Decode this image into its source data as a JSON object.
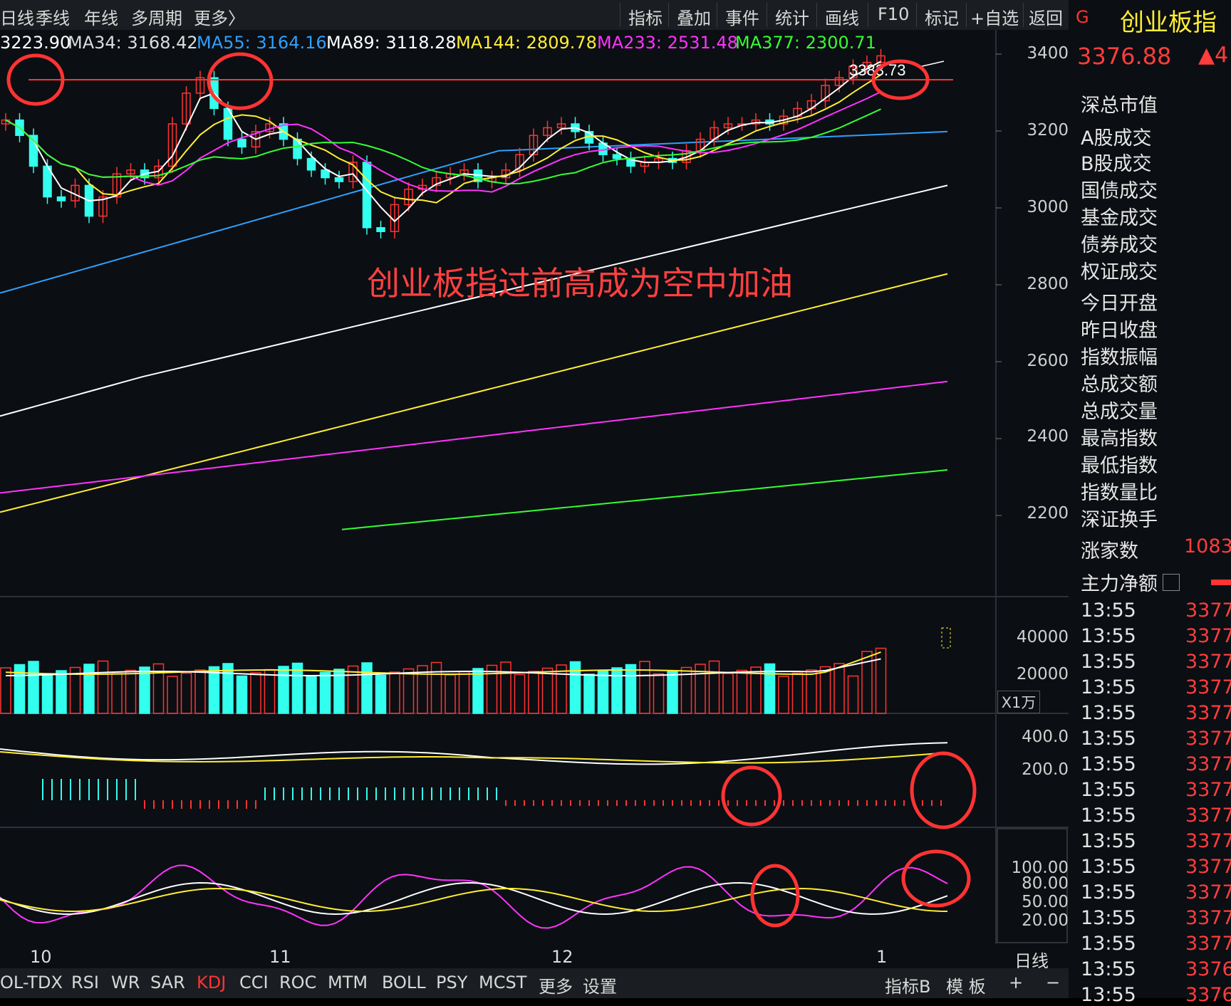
{
  "toolbar": {
    "periods": [
      "日线",
      "季线",
      "年线",
      "多周期",
      "更多〉"
    ],
    "tools": [
      "指标",
      "叠加",
      "事件",
      "统计",
      "画线",
      "F10",
      "标记",
      "+自选",
      "返回"
    ]
  },
  "ma_legend": [
    {
      "label": "3223.90",
      "color": "#ffffff"
    },
    {
      "label": "MA34: 3168.42",
      "color": "#dcdcdc"
    },
    {
      "label": "MA55: 3164.16",
      "color": "#2ea0ff"
    },
    {
      "label": "MA89: 3118.28",
      "color": "#ffffff"
    },
    {
      "label": "MA144: 2809.78",
      "color": "#ffee33"
    },
    {
      "label": "MA233: 2531.48",
      "color": "#ff33ff"
    },
    {
      "label": "MA377: 2300.71",
      "color": "#33ff33"
    }
  ],
  "price_axis": [
    "3400",
    "3200",
    "3000",
    "2800",
    "2600",
    "2400",
    "2200"
  ],
  "volume_axis": [
    "40000",
    "20000"
  ],
  "volume_unit": "X1万",
  "macd_axis": [
    "400.0",
    "200.0"
  ],
  "kdj_axis": [
    "100.00",
    "80.00",
    "50.00",
    "20.00"
  ],
  "x_axis": [
    "10",
    "11",
    "12",
    "1"
  ],
  "period_label": "日线",
  "peak_label": "3383.73",
  "annotation": "创业板指过前高成为空中加油",
  "indicator_tabs": [
    "OL-TDX",
    "RSI",
    "WR",
    "SAR",
    "KDJ",
    "CCI",
    "ROC",
    "MTM",
    "BOLL",
    "PSY",
    "MCST",
    "更多",
    "设置"
  ],
  "active_indicator": "KDJ",
  "bottom_right": [
    "指标B",
    "模 板",
    "+",
    "−"
  ],
  "panel": {
    "badge": "G",
    "title": "创业板指",
    "price": "3376.88",
    "change": "▲4",
    "fields": [
      "深总市值",
      "A股成交",
      "B股成交",
      "国债成交",
      "基金成交",
      "债券成交",
      "权证成交",
      "今日开盘",
      "昨日收盘",
      "指数振幅",
      "总成交额",
      "总成交量",
      "最高指数",
      "最低指数",
      "指数量比",
      "深证换手"
    ],
    "rise_label": "涨家数",
    "rise_value": "1083",
    "main_force": "主力净额"
  },
  "ticks": [
    {
      "time": "13:55",
      "price": "3377"
    },
    {
      "time": "13:55",
      "price": "3377"
    },
    {
      "time": "13:55",
      "price": "3377"
    },
    {
      "time": "13:55",
      "price": "3377"
    },
    {
      "time": "13:55",
      "price": "3377"
    },
    {
      "time": "13:55",
      "price": "3377"
    },
    {
      "time": "13:55",
      "price": "3377"
    },
    {
      "time": "13:55",
      "price": "3377"
    },
    {
      "time": "13:55",
      "price": "3377"
    },
    {
      "time": "13:55",
      "price": "3377"
    },
    {
      "time": "13:55",
      "price": "3377"
    },
    {
      "time": "13:55",
      "price": "3377"
    },
    {
      "time": "13:55",
      "price": "3377"
    },
    {
      "time": "13:55",
      "price": "3377"
    },
    {
      "time": "13:55",
      "price": "3376"
    },
    {
      "time": "13:55",
      "price": "3376"
    }
  ],
  "colors": {
    "up": "#ff3333",
    "down": "#33ffee",
    "bg": "#0b0e12"
  }
}
